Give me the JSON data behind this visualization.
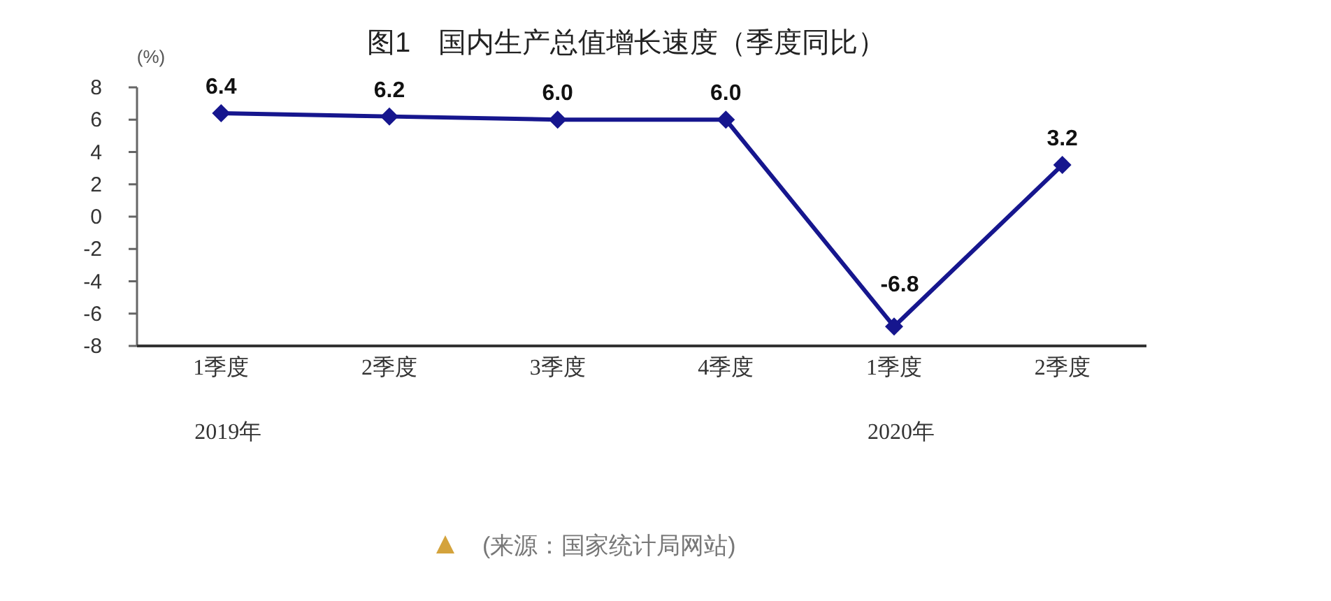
{
  "chart_data": {
    "type": "line",
    "title": "图1　国内生产总值增长速度（季度同比）",
    "ylabel": "(%)",
    "categories": [
      "1季度",
      "2季度",
      "3季度",
      "4季度",
      "1季度",
      "2季度"
    ],
    "series": [
      {
        "color": "#16168e",
        "values": [
          6.4,
          6.2,
          6.0,
          6.0,
          -6.8,
          3.2
        ],
        "value_labels": [
          "6.4",
          "6.2",
          "6.0",
          "6.0",
          "-6.8",
          "3.2"
        ]
      }
    ],
    "ylim": [
      -8,
      8
    ],
    "yticks": [
      -8,
      -6,
      -4,
      -2,
      0,
      2,
      4,
      6,
      8
    ],
    "marker": "diamond",
    "line_style": "solid",
    "annotations": [
      "2019年",
      "2020年",
      "(来源：国家统计局网站)"
    ]
  }
}
